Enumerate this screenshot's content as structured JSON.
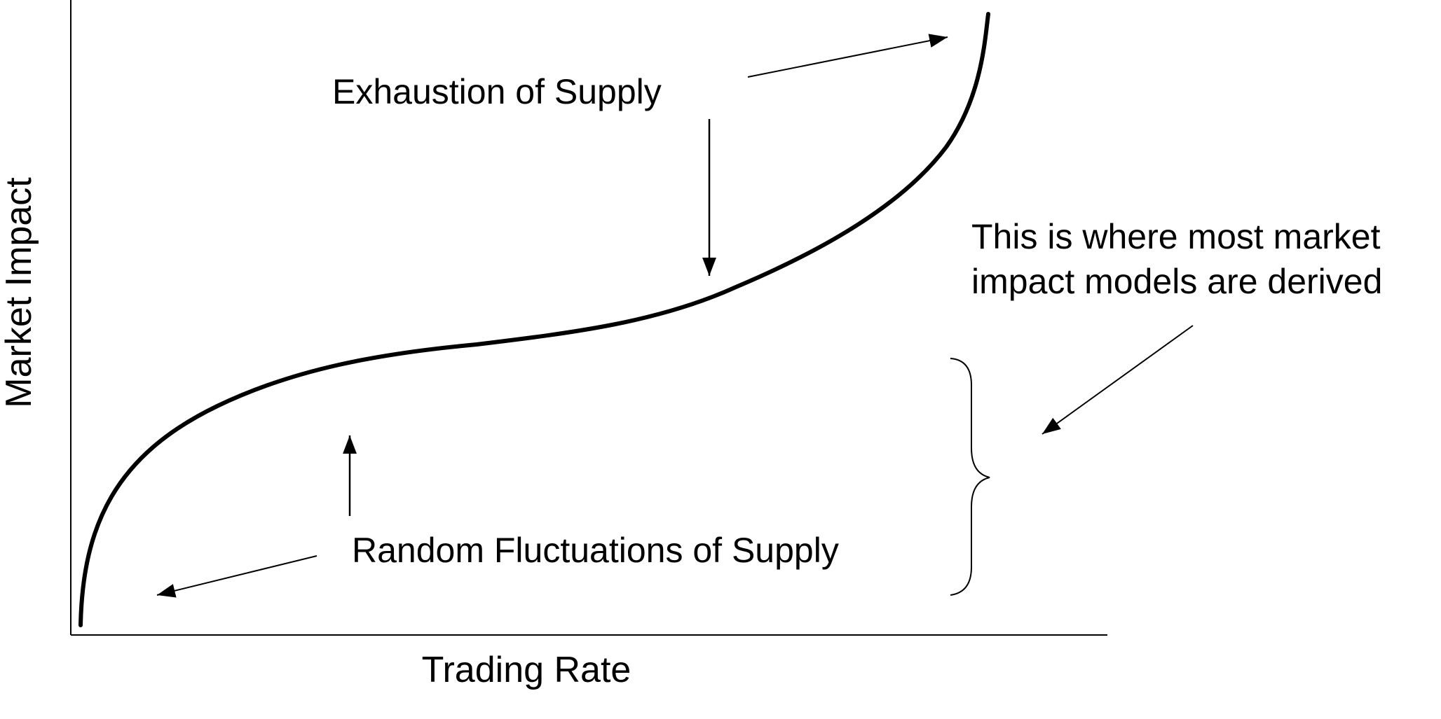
{
  "axes": {
    "x_label": "Trading Rate",
    "y_label": "Market Impact"
  },
  "annotations": {
    "exhaustion": "Exhaustion of Supply",
    "random": "Random Fluctuations of Supply",
    "models_line1": "This is where most market",
    "models_line2": "impact models are derived"
  },
  "colors": {
    "ink": "#000000",
    "background": "#ffffff"
  }
}
